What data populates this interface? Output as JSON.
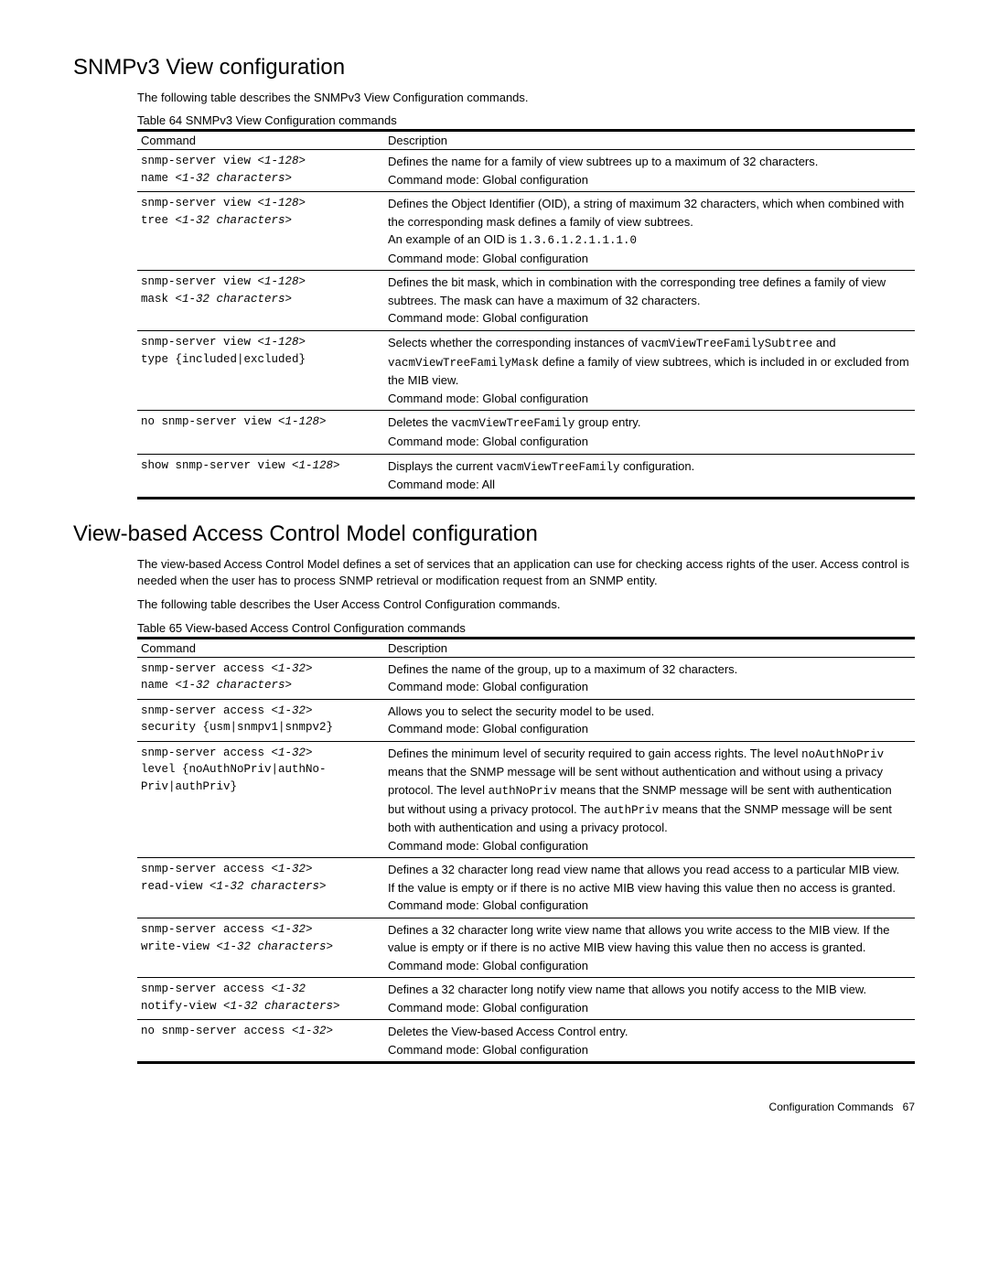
{
  "section1": {
    "title": "SNMPv3 View configuration",
    "intro": "The following table describes the SNMPv3 View Configuration commands.",
    "caption": "Table 64  SNMPv3 View Configuration commands",
    "col1": "Command",
    "col2": "Description",
    "rows": [
      {
        "cmd_plain": "snmp-server view ",
        "cmd_ital1": "<1-128>",
        "cmd_plain2": " name ",
        "cmd_ital2": "<1-32 characters>",
        "desc_text": "Defines the name for a family of view subtrees up to a maximum of 32 characters.",
        "mode_text": "Command mode: Global configuration"
      },
      {
        "cmd_plain": "snmp-server view ",
        "cmd_ital1": "<1-128>",
        "cmd_plain2": " tree ",
        "cmd_ital2": "<1-32 characters>",
        "desc_text": "Defines the Object Identifier (OID), a string of maximum 32 characters, which when combined with the corresponding mask defines a family of view subtrees.",
        "extra_prefix": "An example of an OID is ",
        "extra_code": "1.3.6.1.2.1.1.1.0",
        "mode_text": "Command mode: Global configuration"
      },
      {
        "cmd_plain": "snmp-server view ",
        "cmd_ital1": "<1-128>",
        "cmd_plain2": " mask ",
        "cmd_ital2": "<1-32 characters>",
        "desc_text": "Defines the bit mask, which in combination with the corresponding tree defines a family of view subtrees. The mask can have a maximum of 32 characters.",
        "mode_text": "Command mode: Global configuration"
      },
      {
        "cmd_plain": "snmp-server view ",
        "cmd_ital1": "<1-128>",
        "cmd_plain2": " type {included|excluded}",
        "cmd_ital2": "",
        "desc_pre": "Selects whether the corresponding instances of ",
        "code1": "vacmViewTreeFamilySubtree",
        "mid1": " and ",
        "code2": "vacmViewTreeFamilyMask",
        "desc_post": " define a family of view subtrees, which is included in or excluded from the MIB view.",
        "mode_text": "Command mode: Global configuration"
      },
      {
        "cmd_plain": "no snmp-server view ",
        "cmd_ital1": "<1-128>",
        "cmd_plain2": "",
        "cmd_ital2": "",
        "desc_pre": "Deletes the ",
        "code1": "vacmViewTreeFamily",
        "desc_post": " group entry.",
        "mode_text": "Command mode: Global configuration"
      },
      {
        "cmd_plain": "show snmp-server view ",
        "cmd_ital1": "<1-128>",
        "cmd_plain2": "",
        "cmd_ital2": "",
        "desc_pre": "Displays the current ",
        "code1": "vacmViewTreeFamily",
        "desc_post": " configuration.",
        "mode_text": "Command mode: All"
      }
    ]
  },
  "section2": {
    "title": "View-based Access Control Model configuration",
    "intro": "The view-based Access Control Model defines a set of services that an application can use for checking access rights of the user. Access control is needed when the user has to process SNMP retrieval or modification request from an SNMP entity.",
    "intro2": "The following table describes the User Access Control Configuration commands.",
    "caption": "Table 65  View-based Access Control Configuration commands",
    "col1": "Command",
    "col2": "Description",
    "rows": [
      {
        "cmd_plain": "snmp-server access ",
        "cmd_ital1": "<1-32>",
        "cmd_plain2": " name ",
        "cmd_ital2": "<1-32 characters>",
        "desc_text": "Defines the name of the group, up to a maximum of 32 characters.",
        "mode_text": "Command mode: Global configuration"
      },
      {
        "cmd_plain": "snmp-server access ",
        "cmd_ital1": "<1-32>",
        "cmd_plain2": " security {usm|snmpv1|snmpv2}",
        "cmd_ital2": "",
        "desc_text": "Allows you to select the security model to be used.",
        "mode_text": "Command mode: Global configuration"
      },
      {
        "cmd_plain": "snmp-server access ",
        "cmd_ital1": "<1-32>",
        "cmd_plain2": " level {noAuthNoPriv|authNo-Priv|authPriv}",
        "cmd_ital2": "",
        "desc_pre": "Defines the minimum level of security required to gain access rights. The level ",
        "code1": "noAuthNoPriv",
        "mid1": " means that the SNMP message will be sent without authentication and without using a privacy protocol. The level ",
        "code2": "authNoPriv",
        "mid2": " means that the SNMP message will be sent with authentication but without using a privacy protocol. The ",
        "code3": "authPriv",
        "desc_post": " means that the SNMP message will be sent both with authentication and using a privacy protocol.",
        "mode_text": "Command mode: Global configuration"
      },
      {
        "cmd_plain": "snmp-server access ",
        "cmd_ital1": "<1-32>",
        "cmd_plain2": " read-view ",
        "cmd_ital2": "<1-32 characters>",
        "desc_text": "Defines a 32 character long read view name that allows you read access to a particular MIB view. If the value is empty or if there is no active MIB view having this value then no access is granted.",
        "mode_text": "Command mode: Global configuration"
      },
      {
        "cmd_plain": "snmp-server access ",
        "cmd_ital1": "<1-32>",
        "cmd_plain2": " write-view ",
        "cmd_ital2": "<1-32 characters>",
        "desc_text": "Defines a 32 character long write view name that allows you write access to the MIB view. If the value is empty or if there is no active MIB view having this value then no access is granted.",
        "mode_text": "Command mode: Global configuration"
      },
      {
        "cmd_plain": "snmp-server access ",
        "cmd_ital1": "<1-32",
        "cmd_plain2": " notify-view ",
        "cmd_ital2": "<1-32 characters>",
        "desc_text": "Defines a 32 character long notify view name that allows you notify access to the MIB view.",
        "mode_text": "Command mode: Global configuration"
      },
      {
        "cmd_plain": "no snmp-server access ",
        "cmd_ital1": "<1-32>",
        "cmd_plain2": "",
        "cmd_ital2": "",
        "desc_text": "Deletes the View-based Access Control entry.",
        "mode_text": "Command mode: Global configuration"
      }
    ]
  },
  "footer": {
    "text": "Configuration Commands",
    "page": "67"
  }
}
